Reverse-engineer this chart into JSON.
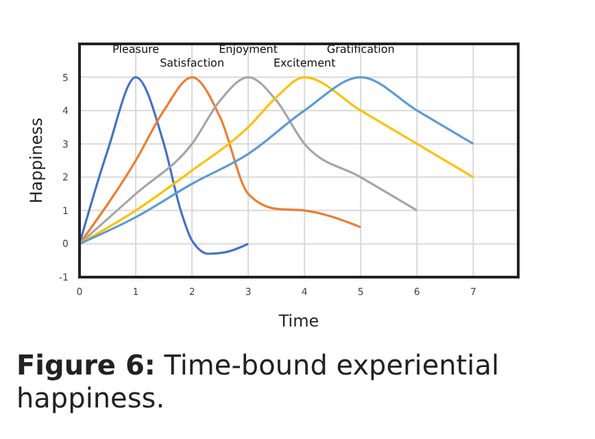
{
  "chart_data": {
    "type": "line",
    "title": "Figure 6: Time-bound experiential happiness.",
    "xlabel": "Time",
    "ylabel": "Happiness",
    "xlim": [
      0,
      7.8
    ],
    "xticks": [
      0,
      1,
      2,
      3,
      4,
      5,
      6,
      7
    ],
    "ylim": [
      -1,
      6
    ],
    "yticks": [
      -1,
      0,
      1,
      2,
      3,
      4,
      5
    ],
    "grid": true,
    "legend": false,
    "marker": "none",
    "line_style": "solid",
    "series": [
      {
        "name": "Pleasure",
        "color": "#4472c4",
        "x": [
          0,
          0.5,
          1,
          1.5,
          1.8,
          2,
          2.3,
          2.6,
          3
        ],
        "values": [
          0,
          2.8,
          5,
          3,
          1,
          0.1,
          -0.3,
          -0.25,
          0
        ]
      },
      {
        "name": "Satisfaction",
        "color": "#ed7d31",
        "x": [
          0,
          1,
          1.5,
          2,
          2.5,
          3,
          3.5,
          4,
          5
        ],
        "values": [
          0,
          2.5,
          4,
          5,
          3.8,
          1.5,
          1.05,
          1,
          0.5
        ]
      },
      {
        "name": "Enjoyment",
        "color": "#a5a5a5",
        "x": [
          0,
          1,
          2,
          2.5,
          3,
          3.5,
          4,
          5,
          6
        ],
        "values": [
          0,
          1.5,
          3,
          4.3,
          5,
          4.3,
          3,
          2,
          1
        ]
      },
      {
        "name": "Excitement",
        "color": "#ffc000",
        "x": [
          0,
          1,
          2,
          3,
          3.5,
          4,
          5,
          6,
          7
        ],
        "values": [
          0,
          1,
          2.2,
          3.5,
          4.4,
          5,
          4,
          3,
          2
        ]
      },
      {
        "name": "Gratification",
        "color": "#5b9bd5",
        "x": [
          0,
          1,
          2,
          3,
          4,
          5,
          6,
          7
        ],
        "values": [
          0,
          0.8,
          1.8,
          2.7,
          4,
          5,
          4,
          3
        ]
      }
    ]
  }
}
